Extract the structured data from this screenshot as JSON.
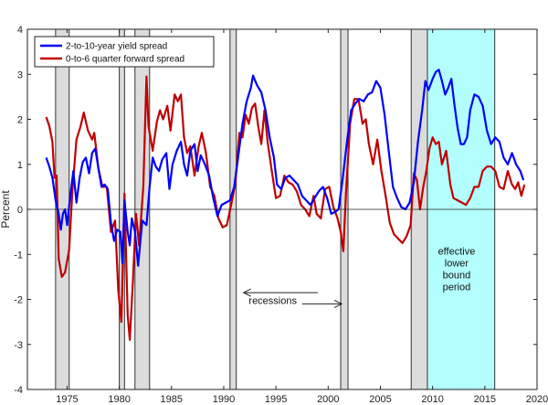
{
  "chart_data": {
    "type": "line",
    "title": "",
    "xlabel": "",
    "ylabel": "Percent",
    "xlim": [
      1971.2,
      2020
    ],
    "ylim": [
      -4,
      4
    ],
    "x_ticks": [
      1975,
      1980,
      1985,
      1990,
      1995,
      2000,
      2005,
      2010,
      2015,
      2020
    ],
    "y_ticks": [
      -4,
      -3,
      -2,
      -1,
      0,
      1,
      2,
      3,
      4
    ],
    "grid": false,
    "legend_position": "top-left",
    "colors": {
      "blue": "#0000ff",
      "red": "#c00000",
      "recession": "#dcdcdc",
      "elb": "#b3ffff"
    },
    "series": [
      {
        "name": "2-to-10-year yield spread",
        "color": "#0000ff",
        "points": [
          [
            1973.0,
            1.15
          ],
          [
            1973.3,
            0.95
          ],
          [
            1973.6,
            0.7
          ],
          [
            1973.9,
            0.2
          ],
          [
            1974.2,
            -0.1
          ],
          [
            1974.4,
            -0.45
          ],
          [
            1974.6,
            -0.1
          ],
          [
            1974.8,
            0.0
          ],
          [
            1975.0,
            -0.35
          ],
          [
            1975.3,
            0.3
          ],
          [
            1975.6,
            0.85
          ],
          [
            1975.9,
            0.15
          ],
          [
            1976.2,
            0.7
          ],
          [
            1976.5,
            1.05
          ],
          [
            1976.8,
            1.15
          ],
          [
            1977.1,
            0.8
          ],
          [
            1977.4,
            1.25
          ],
          [
            1977.7,
            1.35
          ],
          [
            1978.0,
            0.9
          ],
          [
            1978.3,
            0.5
          ],
          [
            1978.6,
            0.55
          ],
          [
            1978.9,
            0.45
          ],
          [
            1979.2,
            -0.3
          ],
          [
            1979.5,
            -0.7
          ],
          [
            1979.8,
            -0.45
          ],
          [
            1980.1,
            -0.5
          ],
          [
            1980.3,
            -1.2
          ],
          [
            1980.5,
            0.2
          ],
          [
            1980.8,
            -0.5
          ],
          [
            1981.0,
            -0.8
          ],
          [
            1981.2,
            -0.2
          ],
          [
            1981.5,
            -0.5
          ],
          [
            1981.8,
            -1.25
          ],
          [
            1982.2,
            -0.25
          ],
          [
            1982.6,
            -0.35
          ],
          [
            1982.9,
            0.5
          ],
          [
            1983.2,
            1.15
          ],
          [
            1983.5,
            0.95
          ],
          [
            1983.8,
            0.85
          ],
          [
            1984.1,
            1.1
          ],
          [
            1984.5,
            1.25
          ],
          [
            1984.8,
            0.45
          ],
          [
            1985.1,
            1.0
          ],
          [
            1985.5,
            1.3
          ],
          [
            1985.9,
            1.5
          ],
          [
            1986.2,
            1.0
          ],
          [
            1986.5,
            0.75
          ],
          [
            1986.8,
            1.3
          ],
          [
            1987.2,
            1.45
          ],
          [
            1987.5,
            0.85
          ],
          [
            1987.8,
            1.2
          ],
          [
            1988.2,
            1.0
          ],
          [
            1988.6,
            0.75
          ],
          [
            1989.0,
            0.25
          ],
          [
            1989.4,
            -0.15
          ],
          [
            1989.8,
            0.1
          ],
          [
            1990.2,
            0.15
          ],
          [
            1990.6,
            0.2
          ],
          [
            1991.0,
            0.5
          ],
          [
            1991.4,
            1.2
          ],
          [
            1991.8,
            1.9
          ],
          [
            1992.2,
            2.4
          ],
          [
            1992.6,
            2.7
          ],
          [
            1992.8,
            2.97
          ],
          [
            1993.2,
            2.75
          ],
          [
            1993.6,
            2.6
          ],
          [
            1994.0,
            2.2
          ],
          [
            1994.4,
            1.6
          ],
          [
            1994.8,
            1.15
          ],
          [
            1995.1,
            0.55
          ],
          [
            1995.5,
            0.45
          ],
          [
            1995.9,
            0.7
          ],
          [
            1996.3,
            0.75
          ],
          [
            1996.7,
            0.65
          ],
          [
            1997.1,
            0.55
          ],
          [
            1997.5,
            0.3
          ],
          [
            1997.9,
            0.2
          ],
          [
            1998.3,
            0.1
          ],
          [
            1998.7,
            0.25
          ],
          [
            1999.1,
            0.4
          ],
          [
            1999.5,
            0.5
          ],
          [
            1999.9,
            0.25
          ],
          [
            2000.3,
            -0.1
          ],
          [
            2000.7,
            -0.05
          ],
          [
            2001.0,
            0.0
          ],
          [
            2001.4,
            0.7
          ],
          [
            2001.8,
            1.5
          ],
          [
            2002.2,
            2.2
          ],
          [
            2002.6,
            2.35
          ],
          [
            2003.0,
            2.45
          ],
          [
            2003.4,
            2.4
          ],
          [
            2003.8,
            2.55
          ],
          [
            2004.2,
            2.6
          ],
          [
            2004.6,
            2.85
          ],
          [
            2005.0,
            2.7
          ],
          [
            2005.4,
            2.1
          ],
          [
            2005.8,
            1.3
          ],
          [
            2006.2,
            0.5
          ],
          [
            2006.6,
            0.25
          ],
          [
            2007.0,
            0.05
          ],
          [
            2007.4,
            0.0
          ],
          [
            2007.8,
            0.15
          ],
          [
            2008.2,
            0.6
          ],
          [
            2008.6,
            1.5
          ],
          [
            2009.0,
            2.2
          ],
          [
            2009.3,
            2.85
          ],
          [
            2009.6,
            2.65
          ],
          [
            2010.0,
            2.9
          ],
          [
            2010.3,
            3.05
          ],
          [
            2010.6,
            3.1
          ],
          [
            2010.9,
            2.85
          ],
          [
            2011.2,
            2.55
          ],
          [
            2011.5,
            2.7
          ],
          [
            2011.8,
            2.9
          ],
          [
            2012.1,
            2.3
          ],
          [
            2012.4,
            1.8
          ],
          [
            2012.7,
            1.45
          ],
          [
            2013.0,
            1.45
          ],
          [
            2013.3,
            1.6
          ],
          [
            2013.6,
            2.2
          ],
          [
            2014.0,
            2.55
          ],
          [
            2014.4,
            2.5
          ],
          [
            2014.8,
            2.3
          ],
          [
            2015.2,
            1.75
          ],
          [
            2015.6,
            1.45
          ],
          [
            2016.0,
            1.6
          ],
          [
            2016.4,
            1.5
          ],
          [
            2016.8,
            1.15
          ],
          [
            2017.2,
            1.0
          ],
          [
            2017.6,
            1.25
          ],
          [
            2018.0,
            1.0
          ],
          [
            2018.4,
            0.85
          ],
          [
            2018.7,
            0.65
          ]
        ]
      },
      {
        "name": "0-to-6 quarter forward spread",
        "color": "#c00000",
        "points": [
          [
            1973.0,
            2.05
          ],
          [
            1973.3,
            1.85
          ],
          [
            1973.6,
            1.5
          ],
          [
            1973.8,
            0.7
          ],
          [
            1974.0,
            0.75
          ],
          [
            1974.2,
            -1.1
          ],
          [
            1974.5,
            -1.5
          ],
          [
            1974.8,
            -1.4
          ],
          [
            1975.2,
            -0.9
          ],
          [
            1975.5,
            0.4
          ],
          [
            1975.9,
            1.55
          ],
          [
            1976.3,
            1.85
          ],
          [
            1976.6,
            2.15
          ],
          [
            1977.0,
            1.75
          ],
          [
            1977.4,
            1.55
          ],
          [
            1977.6,
            1.7
          ],
          [
            1978.0,
            0.9
          ],
          [
            1978.4,
            0.5
          ],
          [
            1978.8,
            0.5
          ],
          [
            1979.2,
            -0.5
          ],
          [
            1979.6,
            -0.25
          ],
          [
            1979.9,
            -1.8
          ],
          [
            1980.2,
            -2.5
          ],
          [
            1980.5,
            0.35
          ],
          [
            1980.8,
            -2.35
          ],
          [
            1981.0,
            -2.9
          ],
          [
            1981.3,
            -1.6
          ],
          [
            1981.6,
            -0.1
          ],
          [
            1981.9,
            -0.8
          ],
          [
            1982.3,
            0.5
          ],
          [
            1982.6,
            2.95
          ],
          [
            1982.8,
            1.85
          ],
          [
            1983.2,
            1.3
          ],
          [
            1983.6,
            1.95
          ],
          [
            1983.9,
            2.2
          ],
          [
            1984.2,
            2.0
          ],
          [
            1984.6,
            2.3
          ],
          [
            1984.9,
            1.75
          ],
          [
            1985.3,
            2.55
          ],
          [
            1985.6,
            2.4
          ],
          [
            1985.9,
            2.55
          ],
          [
            1986.2,
            1.6
          ],
          [
            1986.5,
            1.25
          ],
          [
            1986.8,
            1.4
          ],
          [
            1987.2,
            0.75
          ],
          [
            1987.6,
            1.4
          ],
          [
            1987.9,
            1.7
          ],
          [
            1988.3,
            1.25
          ],
          [
            1988.7,
            0.5
          ],
          [
            1989.1,
            0.3
          ],
          [
            1989.5,
            -0.2
          ],
          [
            1989.9,
            -0.4
          ],
          [
            1990.3,
            -0.35
          ],
          [
            1990.7,
            0.1
          ],
          [
            1991.1,
            0.55
          ],
          [
            1991.5,
            1.7
          ],
          [
            1991.8,
            1.6
          ],
          [
            1992.1,
            2.1
          ],
          [
            1992.4,
            1.9
          ],
          [
            1992.7,
            2.25
          ],
          [
            1993.0,
            2.35
          ],
          [
            1993.3,
            1.85
          ],
          [
            1993.6,
            1.45
          ],
          [
            1993.9,
            2.2
          ],
          [
            1994.2,
            1.5
          ],
          [
            1994.6,
            0.85
          ],
          [
            1995.0,
            0.25
          ],
          [
            1995.4,
            0.3
          ],
          [
            1995.8,
            0.75
          ],
          [
            1996.2,
            0.6
          ],
          [
            1996.6,
            0.55
          ],
          [
            1997.0,
            0.4
          ],
          [
            1997.4,
            0.1
          ],
          [
            1997.8,
            0.0
          ],
          [
            1998.2,
            -0.15
          ],
          [
            1998.6,
            0.3
          ],
          [
            1998.9,
            -0.1
          ],
          [
            1999.3,
            -0.2
          ],
          [
            1999.7,
            0.45
          ],
          [
            2000.1,
            0.5
          ],
          [
            2000.5,
            0.05
          ],
          [
            2000.9,
            -0.2
          ],
          [
            2001.2,
            -0.5
          ],
          [
            2001.45,
            -0.93
          ],
          [
            2001.7,
            0.35
          ],
          [
            2002.1,
            1.9
          ],
          [
            2002.5,
            2.45
          ],
          [
            2002.9,
            2.45
          ],
          [
            2003.3,
            1.9
          ],
          [
            2003.6,
            2.0
          ],
          [
            2003.9,
            1.45
          ],
          [
            2004.3,
            1.0
          ],
          [
            2004.7,
            1.55
          ],
          [
            2005.1,
            0.85
          ],
          [
            2005.5,
            0.3
          ],
          [
            2005.9,
            -0.3
          ],
          [
            2006.3,
            -0.55
          ],
          [
            2006.7,
            -0.65
          ],
          [
            2007.1,
            -0.75
          ],
          [
            2007.5,
            -0.6
          ],
          [
            2007.9,
            -0.35
          ],
          [
            2008.2,
            0.8
          ],
          [
            2008.5,
            0.65
          ],
          [
            2008.8,
            0.0
          ],
          [
            2009.1,
            0.5
          ],
          [
            2009.4,
            0.85
          ],
          [
            2009.7,
            1.35
          ],
          [
            2010.0,
            1.6
          ],
          [
            2010.3,
            1.45
          ],
          [
            2010.6,
            1.5
          ],
          [
            2010.9,
            1.0
          ],
          [
            2011.3,
            1.3
          ],
          [
            2011.7,
            0.55
          ],
          [
            2012.0,
            0.25
          ],
          [
            2012.4,
            0.2
          ],
          [
            2012.8,
            0.15
          ],
          [
            2013.2,
            0.1
          ],
          [
            2013.6,
            0.25
          ],
          [
            2014.0,
            0.5
          ],
          [
            2014.4,
            0.5
          ],
          [
            2014.8,
            0.85
          ],
          [
            2015.2,
            0.95
          ],
          [
            2015.6,
            0.95
          ],
          [
            2016.0,
            0.85
          ],
          [
            2016.4,
            0.5
          ],
          [
            2016.8,
            0.45
          ],
          [
            2017.2,
            0.85
          ],
          [
            2017.6,
            0.55
          ],
          [
            2017.9,
            0.45
          ],
          [
            2018.2,
            0.6
          ],
          [
            2018.5,
            0.3
          ],
          [
            2018.8,
            0.55
          ]
        ]
      }
    ],
    "recessions": [
      [
        1973.9,
        1975.2
      ],
      [
        1980.0,
        1980.5
      ],
      [
        1981.5,
        1982.9
      ],
      [
        1990.6,
        1991.2
      ],
      [
        2001.2,
        2001.9
      ],
      [
        2007.95,
        2009.5
      ]
    ],
    "elb_period": [
      2009.0,
      2015.95
    ],
    "annotations": {
      "recessions_label": "recessions",
      "recessions_arrow_from": 1991.9,
      "recessions_arrow_to": 2001.3,
      "recessions_arrow_y": -1.85,
      "recessions_label_y": -1.9,
      "elb_label_lines": [
        "effective",
        "lower",
        "bound",
        "period"
      ],
      "elb_label_x": 2012.3,
      "elb_label_y": -1.0
    }
  }
}
